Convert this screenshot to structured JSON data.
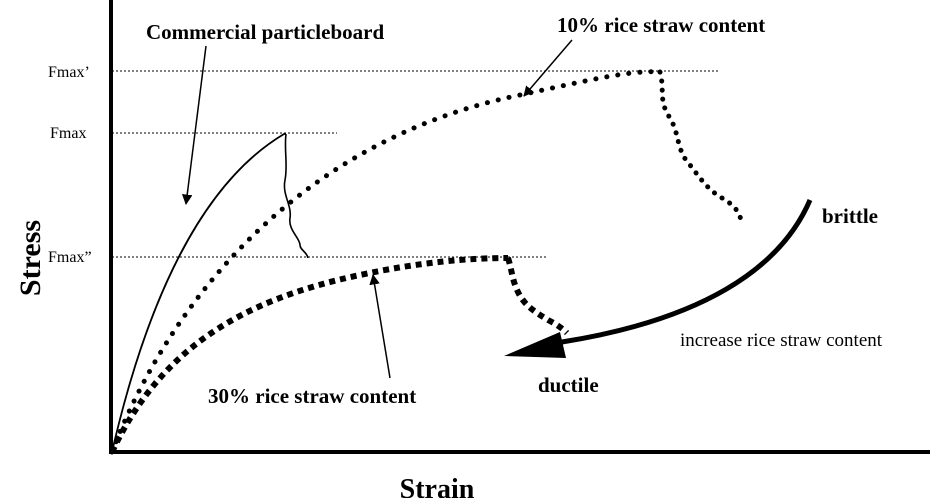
{
  "axes": {
    "y_label": "Stress",
    "x_label": "Strain"
  },
  "levels": {
    "fmax_prime": "Fmax’",
    "fmax": "Fmax",
    "fmax_double_prime": "Fmax”"
  },
  "curves": {
    "commercial": "Commercial particleboard",
    "rice10": "10% rice straw content",
    "rice30": "30% rice straw content"
  },
  "trend": {
    "brittle": "brittle",
    "ductile": "ductile",
    "increase": "increase rice straw content"
  }
}
